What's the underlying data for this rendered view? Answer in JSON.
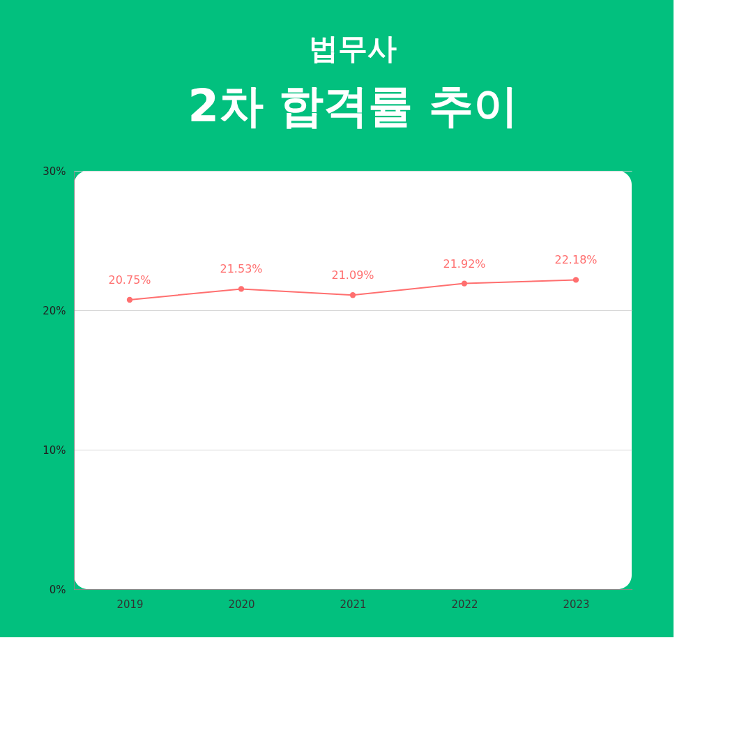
{
  "chart_data": {
    "type": "line",
    "title": "2차 합격률 추이",
    "subtitle": "법무사",
    "categories": [
      "2019",
      "2020",
      "2021",
      "2022",
      "2023"
    ],
    "series": [
      {
        "color": "#ff6f6f",
        "values": [
          20.75,
          21.53,
          21.09,
          21.92,
          22.18
        ],
        "value_labels": [
          "20.75%",
          "21.53%",
          "21.09%",
          "21.92%",
          "22.18%"
        ]
      }
    ],
    "ylim": [
      0,
      30
    ],
    "yticks": [
      {
        "value": 0,
        "label": "0%"
      },
      {
        "value": 10,
        "label": "10%"
      },
      {
        "value": 20,
        "label": "20%"
      },
      {
        "value": 30,
        "label": "30%"
      }
    ],
    "grid": "y",
    "marker": "circle",
    "line_style": "solid"
  }
}
